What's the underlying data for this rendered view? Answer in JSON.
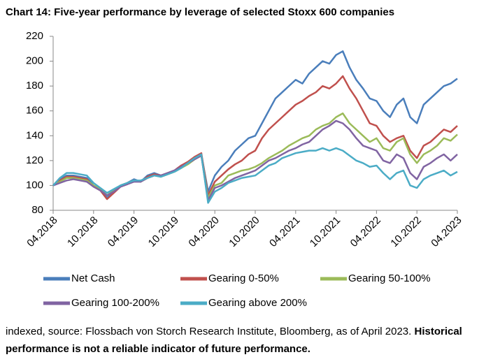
{
  "chart_data": {
    "type": "line",
    "title": "Chart 14: Five-year performance by leverage of selected Stoxx 600 companies",
    "note": "indexed, source: Flossbach von Storch Research Institute, Bloomberg, as of April 2023.",
    "note_bold": "Historical performance is not a reliable indicator of future performance.",
    "categories": [
      "04.2018",
      null,
      null,
      null,
      null,
      null,
      "10.2018",
      null,
      null,
      null,
      null,
      null,
      "04.2019",
      null,
      null,
      null,
      null,
      null,
      "10.2019",
      null,
      null,
      null,
      null,
      null,
      "04.2020",
      null,
      null,
      null,
      null,
      null,
      "10.2020",
      null,
      null,
      null,
      null,
      null,
      "04.2021",
      null,
      null,
      null,
      null,
      null,
      "10.2021",
      null,
      null,
      null,
      null,
      null,
      "04.2022",
      null,
      null,
      null,
      null,
      null,
      "10.2022",
      null,
      null,
      null,
      null,
      null,
      "04.2023"
    ],
    "ylim": [
      80,
      220
    ],
    "yticks": [
      80,
      100,
      120,
      140,
      160,
      180,
      200,
      220
    ],
    "series": [
      {
        "name": "Net Cash",
        "color": "#4a7ebb",
        "values": [
          100,
          105,
          108,
          108,
          107,
          106,
          100,
          97,
          90,
          95,
          100,
          102,
          105,
          103,
          108,
          110,
          108,
          110,
          112,
          116,
          118,
          122,
          125,
          95,
          108,
          115,
          120,
          128,
          133,
          138,
          140,
          150,
          160,
          170,
          175,
          180,
          185,
          182,
          190,
          195,
          200,
          198,
          205,
          208,
          195,
          185,
          178,
          170,
          168,
          160,
          155,
          165,
          170,
          155,
          150,
          165,
          170,
          175,
          180,
          182,
          186
        ]
      },
      {
        "name": "Gearing 0-50%",
        "color": "#c0504d",
        "values": [
          100,
          104,
          107,
          107,
          106,
          105,
          99,
          96,
          89,
          94,
          99,
          101,
          104,
          103,
          107,
          109,
          108,
          110,
          112,
          116,
          119,
          123,
          126,
          92,
          103,
          108,
          113,
          117,
          120,
          125,
          128,
          138,
          145,
          150,
          155,
          160,
          165,
          168,
          172,
          175,
          180,
          178,
          182,
          188,
          178,
          170,
          160,
          150,
          148,
          140,
          135,
          138,
          140,
          128,
          122,
          132,
          135,
          140,
          145,
          143,
          148
        ]
      },
      {
        "name": "Gearing 50-100%",
        "color": "#9bbb59",
        "values": [
          100,
          103,
          106,
          106,
          105,
          104,
          100,
          97,
          92,
          96,
          100,
          102,
          104,
          103,
          106,
          108,
          107,
          109,
          111,
          114,
          117,
          121,
          124,
          90,
          100,
          102,
          108,
          110,
          112,
          113,
          115,
          118,
          122,
          125,
          128,
          132,
          135,
          138,
          140,
          145,
          148,
          150,
          155,
          158,
          150,
          145,
          140,
          135,
          138,
          130,
          128,
          135,
          138,
          125,
          118,
          125,
          128,
          132,
          138,
          136,
          141
        ]
      },
      {
        "name": "Gearing 100-200%",
        "color": "#8064a2",
        "values": [
          100,
          102,
          104,
          105,
          104,
          103,
          99,
          96,
          92,
          95,
          99,
          101,
          103,
          103,
          106,
          108,
          108,
          110,
          112,
          115,
          118,
          121,
          124,
          88,
          98,
          100,
          103,
          106,
          108,
          110,
          112,
          116,
          120,
          122,
          125,
          128,
          130,
          133,
          135,
          140,
          145,
          148,
          152,
          150,
          145,
          138,
          132,
          130,
          128,
          120,
          118,
          125,
          122,
          110,
          105,
          115,
          118,
          122,
          125,
          120,
          125
        ]
      },
      {
        "name": "Gearing above 200%",
        "color": "#4bacc6",
        "values": [
          100,
          106,
          110,
          110,
          109,
          108,
          102,
          98,
          94,
          97,
          100,
          102,
          104,
          104,
          106,
          108,
          107,
          109,
          111,
          114,
          118,
          122,
          125,
          86,
          95,
          98,
          102,
          104,
          106,
          107,
          108,
          112,
          116,
          118,
          122,
          124,
          126,
          127,
          128,
          128,
          130,
          128,
          130,
          128,
          124,
          120,
          118,
          115,
          116,
          110,
          105,
          110,
          112,
          100,
          98,
          105,
          108,
          110,
          112,
          108,
          111
        ]
      }
    ]
  }
}
